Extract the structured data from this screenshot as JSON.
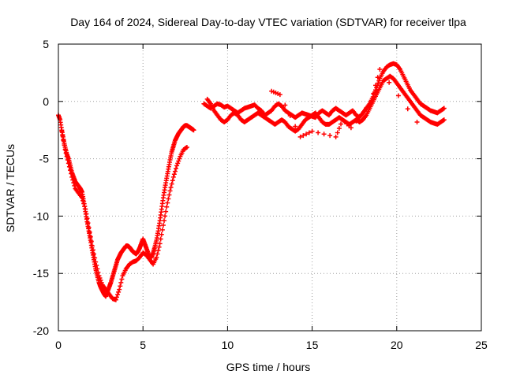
{
  "chart_data": {
    "type": "scatter",
    "title": "Day 164 of 2024, Sidereal Day-to-day VTEC variation (SDTVAR) for receiver tlpa",
    "xlabel": "GPS time / hours",
    "ylabel": "SDTVAR / TECUs",
    "xlim": [
      0,
      25
    ],
    "ylim": [
      -20,
      5
    ],
    "x_ticks": [
      0,
      5,
      10,
      15,
      20,
      25
    ],
    "x_tick_labels": [
      "0",
      "5",
      "10",
      "15",
      "20",
      "25"
    ],
    "y_ticks": [
      5,
      0,
      -5,
      -10,
      -15,
      -20
    ],
    "y_tick_labels": [
      "5",
      "0",
      "-5",
      "-10",
      "-15",
      "-20"
    ],
    "grid": true,
    "marker": "+",
    "colors": {
      "series": "#ff0000",
      "grid": "#a0a0a0",
      "axis": "#000000"
    },
    "series": [
      {
        "name": "SDTVAR tlpa",
        "segments": [
          {
            "x": [
              0.0,
              0.1,
              0.2,
              0.3,
              0.4,
              0.5,
              0.6,
              0.7,
              0.8,
              0.9,
              1.0,
              1.1,
              1.2,
              1.3,
              1.4,
              1.5,
              1.6,
              1.7,
              1.8,
              1.9,
              2.0,
              2.1,
              2.2,
              2.3,
              2.4,
              2.5,
              2.6,
              2.7,
              2.8,
              2.9,
              3.0,
              3.1,
              3.2,
              3.3,
              3.4,
              3.5,
              3.6,
              3.7,
              3.8,
              3.9,
              4.0,
              4.1,
              4.2,
              4.3,
              4.4,
              4.5,
              4.6,
              4.7,
              4.8,
              4.9,
              5.0,
              5.1,
              5.2,
              5.3,
              5.4,
              5.5,
              5.6,
              5.7,
              5.8,
              5.9,
              6.0,
              6.1,
              6.2,
              6.3,
              6.4,
              6.5,
              6.6,
              6.7,
              6.8,
              6.9,
              7.0,
              7.1,
              7.2,
              7.3,
              7.4,
              7.5,
              7.6,
              7.7,
              7.8,
              7.9,
              8.0
            ],
            "y": [
              -1.2,
              -1.6,
              -2.5,
              -3.3,
              -4.0,
              -4.6,
              -5.0,
              -5.6,
              -6.2,
              -6.6,
              -7.0,
              -7.2,
              -7.4,
              -7.6,
              -7.9,
              -8.7,
              -9.6,
              -10.5,
              -11.3,
              -12.1,
              -13.0,
              -13.8,
              -14.6,
              -15.2,
              -15.8,
              -16.2,
              -16.5,
              -16.8,
              -17.0,
              -16.6,
              -16.2,
              -15.8,
              -15.3,
              -14.8,
              -14.3,
              -13.8,
              -13.5,
              -13.2,
              -13.0,
              -12.8,
              -12.6,
              -12.6,
              -12.7,
              -12.9,
              -13.1,
              -13.2,
              -13.3,
              -13.1,
              -12.8,
              -12.4,
              -12.0,
              -12.4,
              -12.8,
              -13.2,
              -13.6,
              -13.6,
              -13.2,
              -12.7,
              -12.1,
              -11.3,
              -10.4,
              -9.4,
              -8.4,
              -7.5,
              -6.7,
              -5.9,
              -5.1,
              -4.4,
              -3.9,
              -3.4,
              -3.1,
              -2.8,
              -2.6,
              -2.4,
              -2.2,
              -2.1,
              -2.1,
              -2.2,
              -2.3,
              -2.4,
              -2.5
            ]
          },
          {
            "x": [
              0.2,
              0.4,
              0.6,
              0.8,
              1.0,
              1.2,
              1.4,
              1.6,
              1.8,
              2.0,
              2.2,
              2.4,
              2.6,
              2.8,
              3.0,
              3.2,
              3.4,
              3.6,
              3.8,
              4.0,
              4.2,
              4.4,
              4.6,
              4.8,
              5.0,
              5.2,
              5.4,
              5.6,
              5.8,
              6.0,
              6.2,
              6.4,
              6.6,
              6.8,
              7.0,
              7.2,
              7.4,
              7.6
            ],
            "y": [
              -2.6,
              -4.2,
              -5.4,
              -6.6,
              -7.6,
              -8.0,
              -8.4,
              -9.4,
              -11.0,
              -12.6,
              -14.0,
              -15.2,
              -16.0,
              -16.4,
              -16.8,
              -17.2,
              -17.3,
              -16.4,
              -15.2,
              -14.6,
              -14.2,
              -14.0,
              -13.9,
              -13.6,
              -13.2,
              -13.4,
              -13.8,
              -14.2,
              -13.6,
              -12.4,
              -10.8,
              -9.2,
              -7.8,
              -6.6,
              -5.6,
              -4.8,
              -4.2,
              -4.0
            ]
          },
          {
            "x": [
              8.6,
              8.8,
              9.0,
              9.2,
              9.4,
              9.6,
              9.8,
              10.0,
              10.2,
              10.4,
              10.6,
              10.8,
              11.0,
              11.2,
              11.4,
              11.6,
              11.8,
              12.0,
              12.2,
              12.4,
              12.6,
              12.8,
              13.0,
              13.2,
              13.4,
              13.6,
              13.8,
              14.0,
              14.2,
              14.4,
              14.6,
              14.8,
              15.0,
              15.2,
              15.4,
              15.6,
              15.8,
              16.0,
              16.2,
              16.4,
              16.6,
              16.8,
              17.0,
              17.2,
              17.4,
              17.6,
              17.8,
              18.0,
              18.2,
              18.4,
              18.6,
              18.8,
              19.0,
              19.2,
              19.4,
              19.6,
              19.8,
              20.0,
              20.2,
              20.4,
              20.6,
              20.8,
              21.0,
              21.2,
              21.4,
              21.6,
              21.8,
              22.0,
              22.2,
              22.4,
              22.6,
              22.8
            ],
            "y": [
              -0.2,
              -0.4,
              -0.6,
              -0.4,
              -0.2,
              -0.3,
              -0.5,
              -0.4,
              -0.6,
              -0.8,
              -1.0,
              -0.8,
              -0.6,
              -0.5,
              -0.4,
              -0.3,
              -0.6,
              -0.8,
              -1.2,
              -1.0,
              -0.8,
              -0.4,
              -0.2,
              -0.4,
              -0.8,
              -1.0,
              -1.2,
              -1.4,
              -1.2,
              -1.0,
              -1.1,
              -1.2,
              -1.3,
              -1.4,
              -1.0,
              -0.8,
              -1.0,
              -1.2,
              -0.8,
              -0.6,
              -0.8,
              -1.0,
              -1.2,
              -1.0,
              -0.8,
              -1.2,
              -1.4,
              -1.0,
              -0.6,
              -0.2,
              0.4,
              1.2,
              2.0,
              2.6,
              3.0,
              3.2,
              3.3,
              3.2,
              2.8,
              2.2,
              1.6,
              1.0,
              0.6,
              0.2,
              -0.2,
              -0.4,
              -0.6,
              -0.8,
              -0.9,
              -1.0,
              -0.8,
              -0.6
            ]
          },
          {
            "x": [
              8.8,
              9.0,
              9.2,
              9.4,
              9.6,
              9.8,
              10.0,
              10.2,
              10.4,
              10.6,
              10.8,
              11.0,
              11.2,
              11.4,
              11.6,
              11.8,
              12.0,
              12.2,
              12.4,
              12.6,
              12.8,
              13.0,
              13.2,
              13.4,
              13.6,
              13.8,
              14.0,
              14.2,
              14.4,
              14.6,
              14.8,
              15.0,
              15.2,
              15.4,
              15.6,
              15.8,
              16.0,
              16.2,
              16.4,
              16.6,
              16.8,
              17.0,
              17.2,
              17.4,
              17.6,
              17.8,
              18.0,
              18.2,
              18.4,
              18.6,
              18.8,
              19.0,
              19.2,
              19.4,
              19.6,
              19.8,
              20.0,
              20.2,
              20.4,
              20.6,
              20.8,
              21.0,
              21.2,
              21.4,
              21.6,
              21.8,
              22.0,
              22.2,
              22.4,
              22.6,
              22.8
            ],
            "y": [
              0.2,
              -0.2,
              -0.8,
              -1.2,
              -1.6,
              -1.8,
              -1.6,
              -1.2,
              -1.0,
              -1.2,
              -1.6,
              -1.8,
              -1.6,
              -1.4,
              -1.2,
              -1.0,
              -1.2,
              -1.4,
              -1.6,
              -1.8,
              -2.0,
              -1.8,
              -1.6,
              -1.8,
              -2.2,
              -2.4,
              -2.6,
              -2.4,
              -2.0,
              -1.6,
              -1.4,
              -1.2,
              -1.0,
              -1.4,
              -1.8,
              -2.0,
              -2.0,
              -1.8,
              -1.6,
              -1.4,
              -1.6,
              -1.8,
              -2.0,
              -1.8,
              -1.6,
              -1.8,
              -1.6,
              -1.2,
              -0.6,
              0.0,
              0.6,
              1.2,
              1.8,
              2.0,
              2.2,
              2.0,
              1.6,
              1.2,
              0.8,
              0.4,
              0.0,
              -0.4,
              -0.8,
              -1.2,
              -1.4,
              -1.6,
              -1.8,
              -1.9,
              -2.0,
              -1.8,
              -1.6
            ]
          },
          {
            "x": [
              12.6,
              13.1,
              14.3,
              15.0,
              16.4,
              16.8,
              17.3,
              18.5,
              19.0,
              21.2
            ],
            "y": [
              0.9,
              0.6,
              -3.1,
              -2.6,
              -3.1,
              -1.6,
              -2.3,
              0.0,
              2.8,
              -1.8
            ]
          }
        ]
      }
    ]
  }
}
